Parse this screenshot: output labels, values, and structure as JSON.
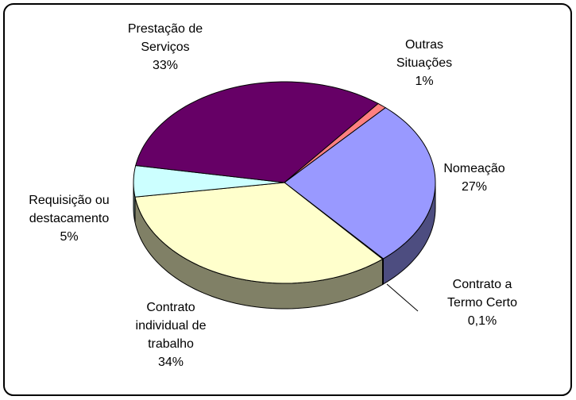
{
  "chart_data": {
    "type": "pie3d",
    "categories": [
      "Nomeação",
      "Contrato a Termo Certo",
      "Contrato individual de trabalho",
      "Requisição ou destacamento",
      "Prestação de Serviços",
      "Outras Situações"
    ],
    "values": [
      27,
      0.1,
      34,
      5,
      33,
      1
    ],
    "value_labels": [
      "27%",
      "0,1%",
      "34%",
      "5%",
      "33%",
      "1%"
    ],
    "colors": [
      "#9999ff",
      "#993366",
      "#ffffcc",
      "#ccffff",
      "#660066",
      "#ff8080"
    ],
    "side_colors": [
      "#4d4d80",
      "#4d1a33",
      "#808066",
      "#668080",
      "#330033",
      "#804040"
    ]
  }
}
